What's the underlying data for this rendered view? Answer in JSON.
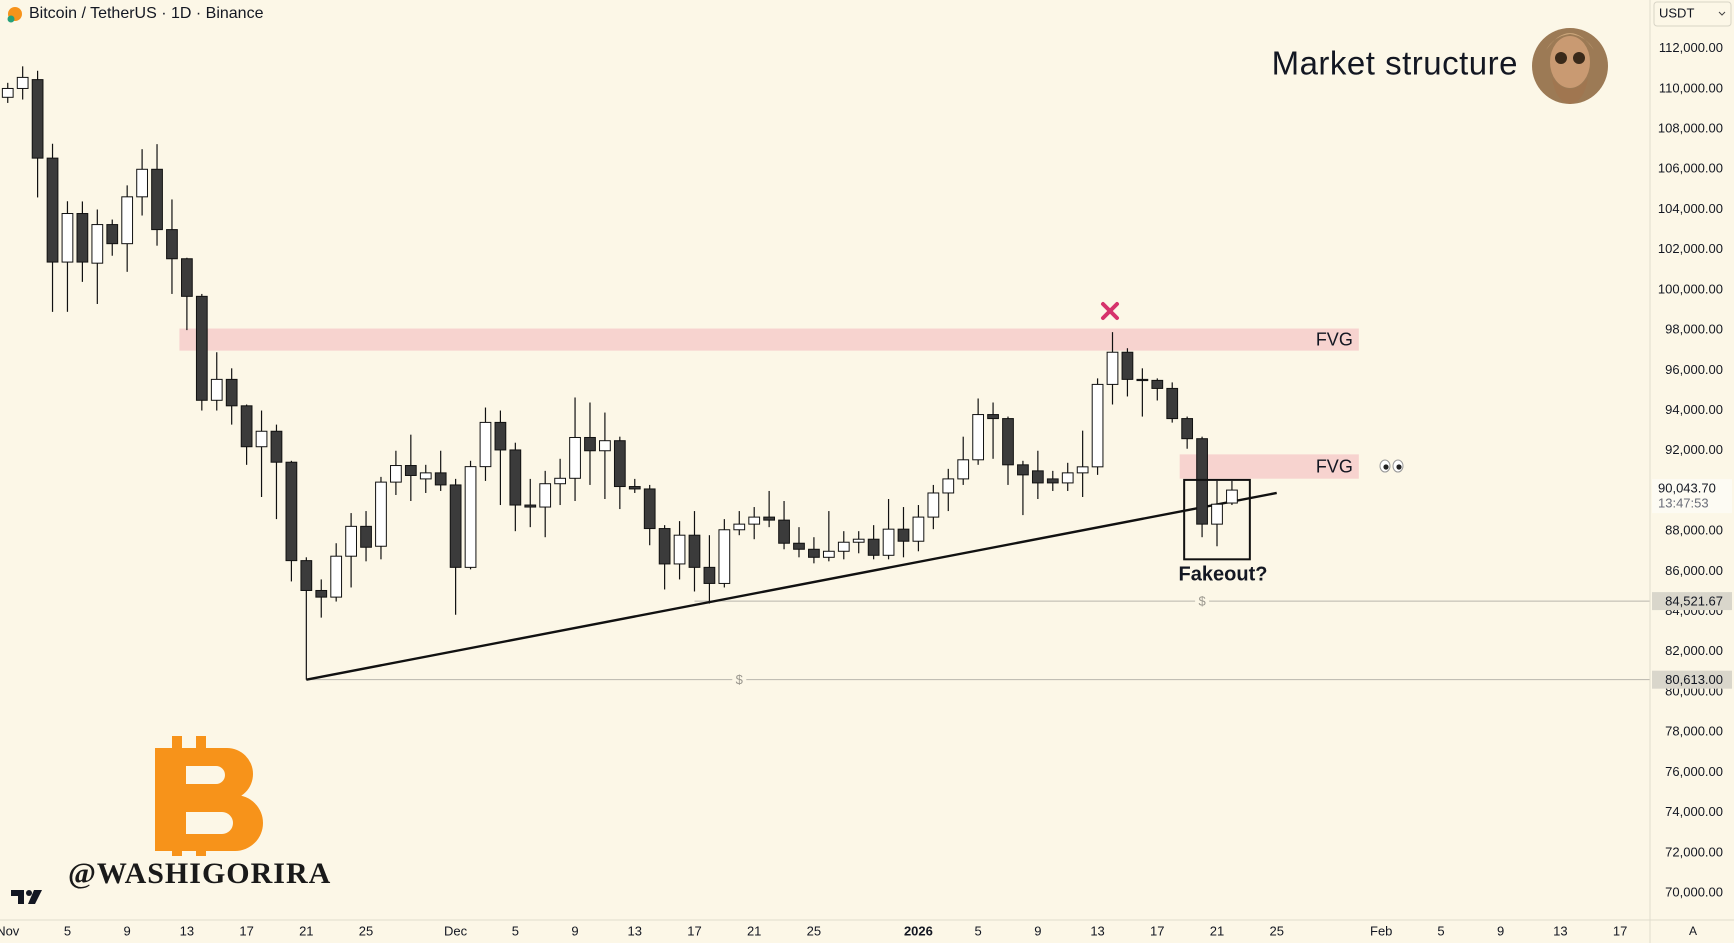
{
  "chart_data": {
    "type": "candlestick",
    "title": "Bitcoin / TetherUS · 1D · Binance",
    "currency": "USDT",
    "heading": "Market structure",
    "watermark": "@WASHIGORIRA",
    "x": [
      "Nov 1",
      "Nov 2",
      "Nov 3",
      "Nov 4",
      "Nov 5",
      "Nov 6",
      "Nov 7",
      "Nov 8",
      "Nov 9",
      "Nov 10",
      "Nov 11",
      "Nov 12",
      "Nov 13",
      "Nov 14",
      "Nov 15",
      "Nov 16",
      "Nov 17",
      "Nov 18",
      "Nov 19",
      "Nov 20",
      "Nov 21",
      "Nov 22",
      "Nov 23",
      "Nov 24",
      "Nov 25",
      "Nov 26",
      "Nov 27",
      "Nov 28",
      "Nov 29",
      "Nov 30",
      "Dec 1",
      "Dec 2",
      "Dec 3",
      "Dec 4",
      "Dec 5",
      "Dec 6",
      "Dec 7",
      "Dec 8",
      "Dec 9",
      "Dec 10",
      "Dec 11",
      "Dec 12",
      "Dec 13",
      "Dec 14",
      "Dec 15",
      "Dec 16",
      "Dec 17",
      "Dec 18",
      "Dec 19",
      "Dec 20",
      "Dec 21",
      "Dec 22",
      "Dec 23",
      "Dec 24",
      "Dec 25",
      "Dec 26",
      "Dec 27",
      "Dec 28",
      "Dec 29",
      "Dec 30",
      "Dec 31",
      "Jan 1",
      "Jan 2",
      "Jan 3",
      "Jan 4",
      "Jan 5",
      "Jan 6",
      "Jan 7",
      "Jan 8",
      "Jan 9",
      "Jan 10",
      "Jan 11",
      "Jan 12",
      "Jan 13",
      "Jan 14",
      "Jan 15",
      "Jan 16",
      "Jan 17",
      "Jan 18",
      "Jan 19",
      "Jan 20",
      "Jan 21",
      "Jan 22"
    ],
    "open": [
      109580,
      110020,
      110460,
      106555,
      101385,
      103800,
      101330,
      103250,
      102300,
      104630,
      106000,
      103000,
      101550,
      99680,
      94510,
      95550,
      94235,
      92200,
      92970,
      91430,
      86535,
      85050,
      84720,
      86755,
      88240,
      87250,
      90440,
      91265,
      90600,
      90900,
      90300,
      86200,
      91210,
      93410,
      92040,
      89300,
      89200,
      90360,
      90630,
      92660,
      92000,
      92500,
      90220,
      90100,
      88130,
      86370,
      87800,
      86200,
      85400,
      88070,
      88350,
      88700,
      88550,
      87400,
      87100,
      86700,
      87000,
      87450,
      87600,
      86800,
      88100,
      87500,
      88700,
      89900,
      90600,
      91550,
      93800,
      93600,
      91300,
      91000,
      90600,
      90400,
      90900,
      91200,
      95300,
      96900,
      95550,
      95500,
      95100,
      93600,
      92600,
      88350,
      89400
    ],
    "high": [
      110300,
      111120,
      110900,
      107270,
      104410,
      104400,
      104000,
      103500,
      105200,
      107000,
      107250,
      104500,
      101600,
      99800,
      96900,
      96100,
      94300,
      94000,
      93300,
      91500,
      86700,
      85600,
      87400,
      88900,
      89000,
      90700,
      92000,
      92800,
      91300,
      92000,
      90600,
      91500,
      94150,
      94000,
      92400,
      90600,
      91000,
      91600,
      94650,
      94400,
      93900,
      92700,
      90600,
      90300,
      88300,
      88500,
      89000,
      87800,
      88600,
      89000,
      89200,
      90000,
      89500,
      88200,
      87700,
      89000,
      88000,
      88000,
      88300,
      89600,
      89200,
      89300,
      90300,
      91100,
      92700,
      94600,
      94400,
      93700,
      91500,
      92000,
      91000,
      91400,
      93000,
      95600,
      97900,
      97100,
      96100,
      95600,
      95400,
      93700,
      92700,
      90500,
      90500
    ],
    "low": [
      109300,
      109470,
      104600,
      98910,
      98910,
      100400,
      99300,
      101700,
      100900,
      103700,
      102200,
      99800,
      98000,
      94000,
      94000,
      93300,
      91300,
      89700,
      88600,
      85500,
      80613,
      83700,
      84500,
      85200,
      86500,
      86600,
      89800,
      89500,
      89900,
      90000,
      83840,
      86100,
      90500,
      89300,
      88000,
      88200,
      87700,
      89300,
      89500,
      90300,
      89600,
      89100,
      89900,
      87300,
      85100,
      85600,
      85000,
      84400,
      85200,
      87800,
      87600,
      88200,
      87100,
      86700,
      86400,
      86500,
      86600,
      86900,
      86600,
      86600,
      86700,
      87000,
      88100,
      89000,
      90300,
      91300,
      91600,
      90300,
      88800,
      89600,
      90000,
      90000,
      89700,
      90800,
      94300,
      94700,
      93700,
      94500,
      93400,
      92100,
      87700,
      87250,
      89300
    ],
    "close": [
      110020,
      110570,
      106555,
      101385,
      103800,
      101385,
      103250,
      102300,
      104630,
      106000,
      103000,
      101550,
      99680,
      94510,
      95550,
      94235,
      92200,
      92970,
      91430,
      86535,
      85050,
      84720,
      86755,
      88240,
      87200,
      90440,
      91265,
      90770,
      90900,
      90300,
      86200,
      91210,
      93410,
      92040,
      89300,
      89200,
      90360,
      90630,
      92660,
      92000,
      92500,
      90220,
      90100,
      88130,
      86370,
      87800,
      86200,
      85400,
      88070,
      88350,
      88700,
      88550,
      87400,
      87100,
      86700,
      87000,
      87450,
      87600,
      86800,
      88100,
      87500,
      88700,
      89900,
      90600,
      91550,
      93800,
      93600,
      91300,
      90800,
      90400,
      90400,
      90900,
      91200,
      95300,
      96900,
      95550,
      95500,
      95100,
      93600,
      92600,
      88350,
      89340,
      90043.7
    ],
    "up_color": "#ffffff",
    "down_color": "#3b3b3b",
    "ylim": [
      68660,
      114420
    ],
    "yticks": [
      {
        "value": 70000,
        "label": "70,000.00"
      },
      {
        "value": 72000,
        "label": "72,000.00"
      },
      {
        "value": 74000,
        "label": "74,000.00"
      },
      {
        "value": 76000,
        "label": "76,000.00"
      },
      {
        "value": 78000,
        "label": "78,000.00"
      },
      {
        "value": 80000,
        "label": "80,000.00"
      },
      {
        "value": 82000,
        "label": "82,000.00"
      },
      {
        "value": 84000,
        "label": "84,000.00"
      },
      {
        "value": 86000,
        "label": "86,000.00"
      },
      {
        "value": 88000,
        "label": "88,000.00"
      },
      {
        "value": 90000,
        "label": "90,000.00"
      },
      {
        "value": 92000,
        "label": "92,000.00"
      },
      {
        "value": 94000,
        "label": "94,000.00"
      },
      {
        "value": 96000,
        "label": "96,000.00"
      },
      {
        "value": 98000,
        "label": "98,000.00"
      },
      {
        "value": 100000,
        "label": "100,000.00"
      },
      {
        "value": 102000,
        "label": "102,000.00"
      },
      {
        "value": 104000,
        "label": "104,000.00"
      },
      {
        "value": 106000,
        "label": "106,000.00"
      },
      {
        "value": 108000,
        "label": "108,000.00"
      },
      {
        "value": 110000,
        "label": "110,000.00"
      },
      {
        "value": 112000,
        "label": "112,000.00"
      }
    ],
    "xticks": [
      {
        "value": "Nov 1",
        "label": "Nov"
      },
      {
        "value": "Nov 5",
        "label": "5"
      },
      {
        "value": "Nov 9",
        "label": "9"
      },
      {
        "value": "Nov 13",
        "label": "13"
      },
      {
        "value": "Nov 17",
        "label": "17"
      },
      {
        "value": "Nov 21",
        "label": "21"
      },
      {
        "value": "Nov 25",
        "label": "25"
      },
      {
        "value": "Dec 1",
        "label": "Dec"
      },
      {
        "value": "Dec 5",
        "label": "5"
      },
      {
        "value": "Dec 9",
        "label": "9"
      },
      {
        "value": "Dec 13",
        "label": "13"
      },
      {
        "value": "Dec 17",
        "label": "17"
      },
      {
        "value": "Dec 21",
        "label": "21"
      },
      {
        "value": "Dec 25",
        "label": "25"
      },
      {
        "value": "Jan 1",
        "label": "2026"
      },
      {
        "value": "Jan 5",
        "label": "5"
      },
      {
        "value": "Jan 9",
        "label": "9"
      },
      {
        "value": "Jan 13",
        "label": "13"
      },
      {
        "value": "Jan 17",
        "label": "17"
      },
      {
        "value": "Jan 21",
        "label": "21"
      },
      {
        "value": "Jan 25",
        "label": "25"
      },
      {
        "value": "Feb 1",
        "label": "Feb"
      },
      {
        "value": "Feb 5",
        "label": "5"
      },
      {
        "value": "Feb 9",
        "label": "9"
      },
      {
        "value": "Feb 13",
        "label": "13"
      },
      {
        "value": "Feb 17",
        "label": "17"
      }
    ],
    "zones": [
      {
        "label": "FVG",
        "from": "Nov 13",
        "to": "Jan 30",
        "low": 96980,
        "high": 98080,
        "color": "#f7d3cf"
      },
      {
        "label": "FVG",
        "from": "Jan 19",
        "to": "Jan 30",
        "low": 90610,
        "high": 91820,
        "color": "#f7d3cf"
      }
    ],
    "trendline": {
      "from": [
        "Nov 21",
        80613
      ],
      "to": [
        "Jan 25",
        89900
      ]
    },
    "box": {
      "from": "Jan 20",
      "to": "Jan 22",
      "low": 86600,
      "high": 90550,
      "label": "Fakeout?"
    },
    "levels": [
      {
        "value": 84521.67,
        "label": "84,521.67",
        "from": "Dec 17",
        "marker": "$",
        "marker_at": "Jan 20"
      },
      {
        "value": 80613,
        "label": "80,613.00",
        "from": "Nov 21",
        "marker": "$",
        "marker_at": "Dec 20"
      }
    ],
    "last_price": {
      "value": 90043.7,
      "label": "90,043.70",
      "countdown": "13:47:53"
    },
    "scale_mode": "A"
  }
}
